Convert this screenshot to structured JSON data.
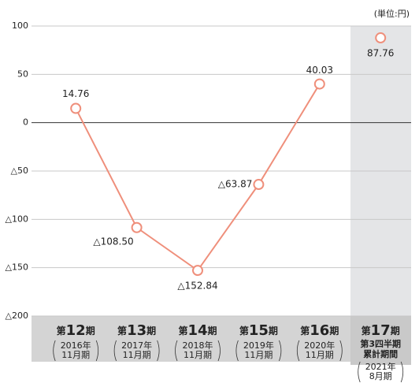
{
  "chart_data": {
    "type": "line",
    "unit": "(単位:円)",
    "categories": [
      [
        "第12期",
        "2016年",
        "11月期"
      ],
      [
        "第13期",
        "2017年",
        "11月期"
      ],
      [
        "第14期",
        "2018年",
        "11月期"
      ],
      [
        "第15期",
        "2019年",
        "11月期"
      ],
      [
        "第16期",
        "2020年",
        "11月期"
      ],
      [
        "第17期",
        "第3四半期",
        "累計期間",
        "2021年",
        "8月期"
      ]
    ],
    "series": [
      {
        "color": "#ef8f7b",
        "values": [
          14.76,
          -108.5,
          -152.84,
          -63.87,
          40.03,
          null
        ],
        "value_labels": [
          "14.76",
          "△108.50",
          "△152.84",
          "△63.87",
          "40.03",
          null
        ]
      },
      {
        "color": "#ef8f7b",
        "values": [
          null,
          null,
          null,
          null,
          null,
          87.76
        ],
        "value_labels": [
          null,
          null,
          null,
          null,
          null,
          "87.76"
        ]
      }
    ],
    "ylim": [
      -200,
      100
    ],
    "yticks": [
      {
        "value": -200,
        "label": "△200"
      },
      {
        "value": -150,
        "label": "△150"
      },
      {
        "value": -100,
        "label": "△100"
      },
      {
        "value": -50,
        "label": "△50"
      },
      0,
      50,
      100
    ],
    "grid": true
  }
}
